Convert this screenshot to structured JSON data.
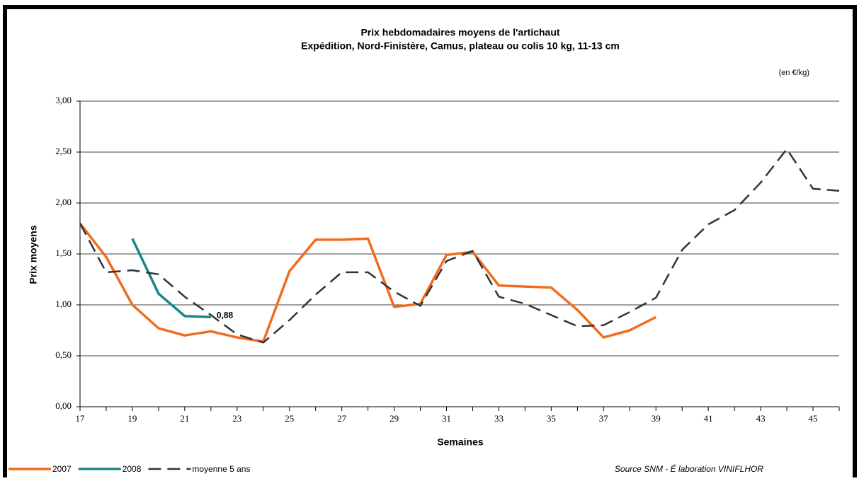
{
  "chart_data": {
    "type": "line",
    "title": "Prix hebdomadaires moyens de l'artichaut",
    "subtitle": "Expédition, Nord-Finistère, Camus, plateau ou colis 10 kg, 11-13 cm",
    "unit_note": "(en €/kg)",
    "y_label": "Prix moyens",
    "x_label": "Semaines",
    "source": "Source SNM - É laboration VINIFLHOR",
    "x": [
      17,
      18,
      19,
      20,
      21,
      22,
      23,
      24,
      25,
      26,
      27,
      28,
      29,
      30,
      31,
      32,
      33,
      34,
      35,
      36,
      37,
      38,
      39,
      40,
      41,
      42,
      43,
      44,
      45,
      46
    ],
    "series": [
      {
        "name": "2007",
        "color": "#f26b1d",
        "dash": false,
        "values": [
          1.8,
          1.47,
          1.0,
          0.77,
          0.7,
          0.74,
          0.68,
          0.64,
          1.33,
          1.64,
          1.64,
          1.65,
          0.98,
          1.01,
          1.49,
          1.52,
          1.19,
          1.18,
          1.17,
          0.95,
          0.68,
          0.75,
          0.88,
          null,
          null,
          null,
          null,
          null,
          null,
          null
        ]
      },
      {
        "name": "2008",
        "color": "#1a8585",
        "dash": false,
        "values": [
          null,
          null,
          1.65,
          1.11,
          0.89,
          0.88,
          null,
          null,
          null,
          null,
          null,
          null,
          null,
          null,
          null,
          null,
          null,
          null,
          null,
          null,
          null,
          null,
          null,
          null,
          null,
          null,
          null,
          null,
          null,
          null
        ],
        "value_labels": [
          null,
          null,
          null,
          null,
          null,
          "0,88",
          null,
          null,
          null,
          null,
          null,
          null,
          null,
          null,
          null,
          null,
          null,
          null,
          null,
          null,
          null,
          null,
          null,
          null,
          null,
          null,
          null,
          null,
          null,
          null
        ]
      },
      {
        "name": "moyenne 5 ans",
        "color": "#333333",
        "dash": true,
        "values": [
          1.8,
          1.32,
          1.34,
          1.3,
          1.08,
          0.9,
          0.71,
          0.63,
          0.85,
          1.1,
          1.32,
          1.32,
          1.13,
          0.99,
          1.43,
          1.53,
          1.08,
          1.01,
          0.9,
          0.79,
          0.8,
          0.93,
          1.07,
          1.54,
          1.79,
          1.93,
          2.2,
          2.53,
          2.14,
          2.12
        ]
      }
    ],
    "xlim": [
      17,
      46
    ],
    "xticks": [
      17,
      19,
      21,
      23,
      25,
      27,
      29,
      31,
      33,
      35,
      37,
      39,
      41,
      43,
      45
    ],
    "xminor_ticks": [
      18,
      20,
      22,
      24,
      26,
      28,
      30,
      32,
      34,
      36,
      38,
      40,
      42,
      44,
      46
    ],
    "ylim": [
      0,
      3
    ],
    "yticks": [
      {
        "value": 0,
        "label": "0,00"
      },
      {
        "value": 0.5,
        "label": "0,50"
      },
      {
        "value": 1,
        "label": "1,00"
      },
      {
        "value": 1.5,
        "label": "1,50"
      },
      {
        "value": 2,
        "label": "2,00"
      },
      {
        "value": 2.5,
        "label": "2,50"
      },
      {
        "value": 3,
        "label": "3,00"
      }
    ],
    "grid": true
  }
}
